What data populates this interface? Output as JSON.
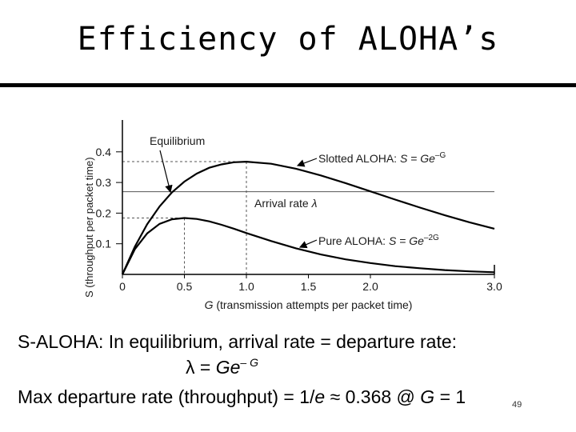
{
  "slide": {
    "title": "Efficiency of ALOHA’s",
    "page_number": "49"
  },
  "text": {
    "line1": "S-ALOHA: In equilibrium, arrival rate = departure rate:",
    "line2_lambda": "λ",
    "line2_eq": " = ",
    "line2_base": "Ge",
    "line2_exp": "– G",
    "line3_prefix": "Max departure rate (throughput) = 1/",
    "line3_e": "e",
    "line3_approx": " ≈ 0.368 @ ",
    "line3_G": "G",
    "line3_suffix": " = 1"
  },
  "chart_data": {
    "type": "line",
    "xlabel": "G (transmission attempts per packet time)",
    "ylabel": "S (throughput per packet time)",
    "xlim": [
      0,
      3.0
    ],
    "ylim": [
      0,
      0.45
    ],
    "x_ticks": [
      "0",
      "0.5",
      "1.0",
      "1.5",
      "2.0",
      "3.0"
    ],
    "x_tick_values": [
      0,
      0.5,
      1.0,
      1.5,
      2.0,
      3.0
    ],
    "y_ticks": [
      "0.1",
      "0.2",
      "0.3",
      "0.4"
    ],
    "y_tick_values": [
      0.1,
      0.2,
      0.3,
      0.4
    ],
    "series": [
      {
        "name": "Slotted ALOHA",
        "formula": "S = Ge^-G",
        "x": [
          0,
          0.1,
          0.2,
          0.3,
          0.4,
          0.5,
          0.6,
          0.7,
          0.8,
          0.9,
          1.0,
          1.2,
          1.4,
          1.6,
          1.8,
          2.0,
          2.2,
          2.4,
          2.6,
          2.8,
          3.0
        ],
        "y": [
          0,
          0.09,
          0.164,
          0.222,
          0.268,
          0.303,
          0.329,
          0.348,
          0.359,
          0.366,
          0.368,
          0.361,
          0.345,
          0.323,
          0.298,
          0.271,
          0.244,
          0.218,
          0.193,
          0.17,
          0.149
        ]
      },
      {
        "name": "Pure ALOHA",
        "formula": "S = Ge^-2G",
        "x": [
          0,
          0.1,
          0.2,
          0.3,
          0.4,
          0.5,
          0.6,
          0.7,
          0.8,
          0.9,
          1.0,
          1.2,
          1.4,
          1.6,
          1.8,
          2.0,
          2.2,
          2.4,
          2.6,
          2.8,
          3.0
        ],
        "y": [
          0,
          0.082,
          0.134,
          0.165,
          0.18,
          0.184,
          0.181,
          0.173,
          0.162,
          0.149,
          0.135,
          0.109,
          0.085,
          0.065,
          0.049,
          0.037,
          0.027,
          0.02,
          0.014,
          0.01,
          0.007
        ]
      }
    ],
    "arrival_rate": 0.27,
    "annotations": {
      "equilibrium": "Equilibrium",
      "slotted_label": "Slotted ALOHA: ",
      "slotted_formula_base": "S = Ge",
      "slotted_formula_exp": "–G",
      "arrival_label": "Arrival rate ",
      "arrival_symbol": "λ",
      "pure_label": "Pure ALOHA: ",
      "pure_formula_base": "S = Ge",
      "pure_formula_exp": "–2G",
      "axis_x_var": "G",
      "axis_x_rest": " (transmission attempts per packet time)"
    },
    "colors": {
      "curve": "#000000",
      "dashed": "#555555",
      "arrival_line": "#555555",
      "text": "#1a1a1a"
    }
  }
}
